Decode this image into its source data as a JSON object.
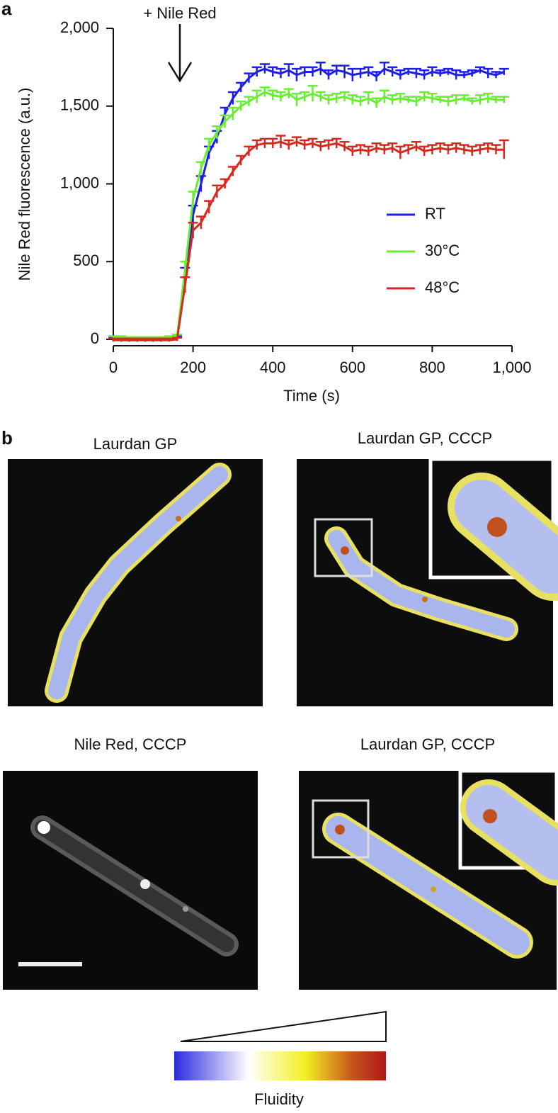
{
  "panel_a": {
    "label": "a"
  },
  "chart_data": {
    "type": "line",
    "annotation": "+ Nile Red",
    "xlabel": "Time (s)",
    "ylabel": "Nile Red fluorescence (a.u.)",
    "x": [
      0,
      20,
      40,
      60,
      80,
      100,
      120,
      140,
      160,
      180,
      200,
      220,
      240,
      260,
      280,
      300,
      320,
      340,
      360,
      380,
      400,
      420,
      440,
      460,
      480,
      500,
      520,
      540,
      560,
      580,
      600,
      620,
      640,
      660,
      680,
      700,
      720,
      740,
      760,
      780,
      800,
      820,
      840,
      860,
      880,
      900,
      920,
      940,
      960,
      980
    ],
    "xlim": [
      0,
      1000
    ],
    "xticks": [
      0,
      200,
      400,
      600,
      800,
      {
        "value": 1000,
        "label": "1,000"
      }
    ],
    "ylim": [
      0,
      2000
    ],
    "yticks": [
      0,
      500,
      {
        "value": 1000,
        "label": "1,000"
      },
      {
        "value": 1500,
        "label": "1,500"
      },
      {
        "value": 2000,
        "label": "2,000"
      }
    ],
    "legend": "right",
    "series": [
      {
        "name": "RT",
        "color": "#1e1ee6",
        "values": [
          0,
          -5,
          -5,
          -5,
          -5,
          -5,
          -5,
          0,
          10,
          400,
          800,
          1000,
          1200,
          1300,
          1450,
          1550,
          1620,
          1680,
          1720,
          1740,
          1720,
          1710,
          1730,
          1700,
          1720,
          1720,
          1740,
          1700,
          1730,
          1720,
          1700,
          1710,
          1720,
          1690,
          1740,
          1720,
          1700,
          1720,
          1710,
          1700,
          1720,
          1710,
          1720,
          1700,
          1700,
          1710,
          1730,
          1710,
          1700,
          1720
        ],
        "errors": [
          10,
          10,
          10,
          10,
          10,
          10,
          10,
          10,
          10,
          60,
          60,
          50,
          40,
          40,
          40,
          40,
          30,
          30,
          30,
          30,
          30,
          30,
          40,
          40,
          30,
          30,
          40,
          30,
          30,
          40,
          40,
          30,
          30,
          30,
          40,
          30,
          30,
          20,
          30,
          30,
          30,
          20,
          20,
          30,
          20,
          20,
          20,
          30,
          20,
          20
        ]
      },
      {
        "name": "30°C",
        "color": "#6aee34",
        "values": [
          10,
          10,
          5,
          5,
          5,
          5,
          5,
          10,
          20,
          450,
          900,
          1100,
          1250,
          1330,
          1400,
          1450,
          1500,
          1530,
          1560,
          1590,
          1570,
          1560,
          1580,
          1540,
          1560,
          1580,
          1560,
          1540,
          1550,
          1560,
          1540,
          1530,
          1550,
          1520,
          1560,
          1540,
          1550,
          1540,
          1530,
          1560,
          1550,
          1540,
          1530,
          1540,
          1550,
          1530,
          1540,
          1550,
          1540,
          1540
        ],
        "errors": [
          10,
          10,
          10,
          10,
          10,
          10,
          10,
          10,
          10,
          50,
          50,
          40,
          40,
          40,
          40,
          40,
          30,
          30,
          40,
          30,
          30,
          30,
          30,
          40,
          30,
          50,
          30,
          30,
          30,
          30,
          30,
          30,
          40,
          30,
          40,
          30,
          30,
          20,
          30,
          30,
          30,
          20,
          30,
          30,
          20,
          20,
          30,
          30,
          20,
          20
        ]
      },
      {
        "name": "48°C",
        "color": "#d42a20",
        "values": [
          -5,
          -5,
          -5,
          -5,
          -5,
          -5,
          -5,
          -5,
          0,
          350,
          700,
          750,
          850,
          950,
          1000,
          1080,
          1150,
          1210,
          1250,
          1260,
          1260,
          1270,
          1250,
          1270,
          1250,
          1260,
          1240,
          1250,
          1260,
          1240,
          1210,
          1220,
          1210,
          1230,
          1220,
          1230,
          1200,
          1220,
          1240,
          1210,
          1220,
          1230,
          1220,
          1230,
          1220,
          1210,
          1220,
          1230,
          1220,
          1220
        ],
        "errors": [
          10,
          10,
          10,
          10,
          10,
          10,
          10,
          10,
          10,
          50,
          50,
          40,
          40,
          40,
          30,
          30,
          30,
          30,
          30,
          30,
          30,
          40,
          30,
          30,
          30,
          30,
          30,
          30,
          30,
          30,
          30,
          30,
          30,
          30,
          30,
          30,
          40,
          30,
          30,
          30,
          30,
          30,
          30,
          30,
          30,
          30,
          30,
          30,
          30,
          60
        ]
      }
    ]
  },
  "panel_b": {
    "label": "b",
    "images": [
      {
        "title": "Laurdan GP"
      },
      {
        "title": "Laurdan GP, CCCP"
      },
      {
        "title": "Nile Red, CCCP"
      },
      {
        "title": "Laurdan GP, CCCP"
      }
    ],
    "colorbar_label": "Fluidity"
  }
}
